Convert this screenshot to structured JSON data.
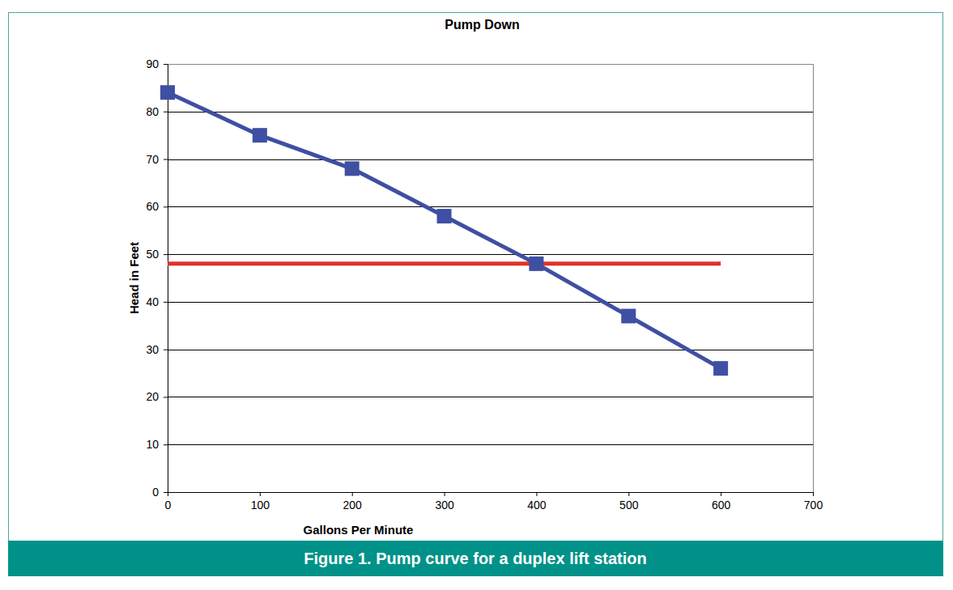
{
  "chart_data": {
    "type": "line",
    "title": "Pump Down",
    "caption": "Figure 1. Pump curve for a duplex lift station",
    "x_label": "Gallons Per Minute",
    "y_label": "Head in Feet",
    "x": [
      0,
      100,
      200,
      300,
      400,
      500,
      600
    ],
    "series": [
      {
        "color": "#3f4fa3",
        "marker": "square",
        "values": [
          84,
          75,
          68,
          58,
          48,
          37,
          26
        ]
      },
      {
        "color": "#e03228",
        "values": [
          48,
          48,
          48,
          48,
          48,
          48,
          48
        ]
      }
    ],
    "xlim": [
      0,
      700
    ],
    "xticks": [
      0,
      100,
      200,
      300,
      400,
      500,
      600,
      700
    ],
    "ylim": [
      0,
      90
    ],
    "yticks": [
      0,
      10,
      20,
      30,
      40,
      50,
      60,
      70,
      80,
      90
    ],
    "grid": "y"
  }
}
